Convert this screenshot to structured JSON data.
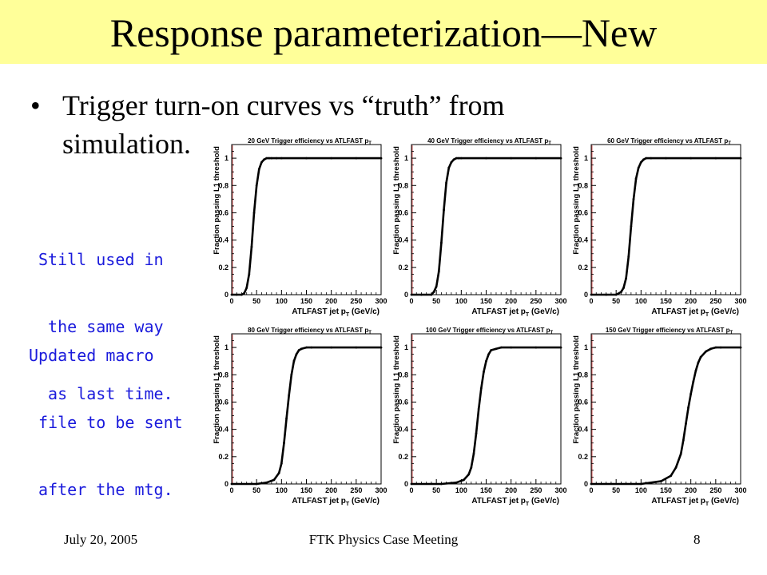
{
  "slide": {
    "title": "Response parameterization—New",
    "bullet_symbol": "•",
    "bullet_lines": [
      "Trigger turn-on curves vs “truth” from",
      "simulation."
    ],
    "note1_lines": [
      "Still used in",
      " the same way",
      " as last time."
    ],
    "note2_lines": [
      "Updated macro",
      " file to be sent",
      " after the mtg."
    ],
    "footer_date": "July 20, 2005",
    "footer_center": "FTK Physics Case Meeting",
    "footer_page": "8"
  },
  "colors": {
    "title_bg": "#ffff99",
    "note_text": "#1a1adc",
    "curve": "#000000",
    "frame": "#000000"
  },
  "chart_data": [
    {
      "type": "line",
      "title": "20 GeV Trigger efficiency vs ATLFAST p",
      "title_sub": "T",
      "xlabel": "ATLFAST jet p",
      "xlabel_sub": "T",
      "xlabel_unit": " (GeV/c)",
      "ylabel": "Fraction passing L1 threshold",
      "xlim": [
        0,
        300
      ],
      "ylim": [
        0,
        1.1
      ],
      "xticks": [
        0,
        50,
        100,
        150,
        200,
        250,
        300
      ],
      "yticks": [
        0,
        0.2,
        0.4,
        0.6,
        0.8,
        1
      ],
      "x": [
        0,
        10,
        20,
        25,
        30,
        35,
        40,
        45,
        50,
        55,
        60,
        65,
        70,
        75,
        80,
        90,
        100,
        150,
        200,
        250,
        300
      ],
      "y": [
        0,
        0,
        0,
        0.01,
        0.05,
        0.15,
        0.35,
        0.6,
        0.8,
        0.92,
        0.97,
        0.99,
        1,
        1,
        1,
        1,
        1,
        1,
        1,
        1,
        1
      ]
    },
    {
      "type": "line",
      "title": "40 GeV Trigger efficiency vs ATLFAST p",
      "title_sub": "T",
      "xlabel": "ATLFAST jet p",
      "xlabel_sub": "T",
      "xlabel_unit": " (GeV/c)",
      "ylabel": "Fraction passing L1 threshold",
      "xlim": [
        0,
        300
      ],
      "ylim": [
        0,
        1.1
      ],
      "xticks": [
        0,
        50,
        100,
        150,
        200,
        250,
        300
      ],
      "yticks": [
        0,
        0.2,
        0.4,
        0.6,
        0.8,
        1
      ],
      "x": [
        0,
        20,
        40,
        45,
        50,
        55,
        60,
        65,
        70,
        75,
        80,
        85,
        90,
        95,
        100,
        150,
        200,
        250,
        300
      ],
      "y": [
        0,
        0,
        0,
        0.02,
        0.06,
        0.17,
        0.38,
        0.62,
        0.82,
        0.93,
        0.97,
        0.99,
        1,
        1,
        1,
        1,
        1,
        1,
        1
      ]
    },
    {
      "type": "line",
      "title": "60 GeV Trigger efficiency vs ATLFAST p",
      "title_sub": "T",
      "xlabel": "ATLFAST jet p",
      "xlabel_sub": "T",
      "xlabel_unit": " (GeV/c)",
      "ylabel": "Fraction passing L1 threshold",
      "xlim": [
        0,
        300
      ],
      "ylim": [
        0,
        1.1
      ],
      "xticks": [
        0,
        50,
        100,
        150,
        200,
        250,
        300
      ],
      "yticks": [
        0,
        0.2,
        0.4,
        0.6,
        0.8,
        1
      ],
      "x": [
        0,
        30,
        50,
        60,
        65,
        70,
        75,
        80,
        85,
        90,
        95,
        100,
        105,
        110,
        120,
        150,
        200,
        250,
        300
      ],
      "y": [
        0,
        0,
        0,
        0.02,
        0.05,
        0.12,
        0.28,
        0.5,
        0.7,
        0.85,
        0.93,
        0.97,
        0.99,
        1,
        1,
        1,
        1,
        1,
        1
      ]
    },
    {
      "type": "line",
      "title": "80 GeV Trigger efficiency vs ATLFAST p",
      "title_sub": "T",
      "xlabel": "ATLFAST jet p",
      "xlabel_sub": "T",
      "xlabel_unit": " (GeV/c)",
      "ylabel": "Fraction passing L1 threshold",
      "xlim": [
        0,
        300
      ],
      "ylim": [
        0,
        1.1
      ],
      "xticks": [
        0,
        50,
        100,
        150,
        200,
        250,
        300
      ],
      "yticks": [
        0,
        0.2,
        0.4,
        0.6,
        0.8,
        1
      ],
      "x": [
        0,
        50,
        70,
        85,
        95,
        100,
        105,
        110,
        115,
        120,
        125,
        130,
        135,
        140,
        150,
        160,
        200,
        250,
        300
      ],
      "y": [
        0,
        0,
        0.01,
        0.03,
        0.08,
        0.15,
        0.3,
        0.48,
        0.65,
        0.8,
        0.9,
        0.95,
        0.98,
        0.99,
        1,
        1,
        1,
        1,
        1
      ]
    },
    {
      "type": "line",
      "title": "100 GeV Trigger efficiency vs ATLFAST p",
      "title_sub": "T",
      "xlabel": "ATLFAST jet p",
      "xlabel_sub": "T",
      "xlabel_unit": " (GeV/c)",
      "ylabel": "Fraction passing L1 threshold",
      "xlim": [
        0,
        300
      ],
      "ylim": [
        0,
        1.1
      ],
      "xticks": [
        0,
        50,
        100,
        150,
        200,
        250,
        300
      ],
      "yticks": [
        0,
        0.2,
        0.4,
        0.6,
        0.8,
        1
      ],
      "x": [
        0,
        60,
        90,
        105,
        115,
        120,
        125,
        130,
        135,
        140,
        145,
        150,
        155,
        160,
        170,
        180,
        200,
        250,
        300
      ],
      "y": [
        0,
        0,
        0.01,
        0.03,
        0.07,
        0.12,
        0.22,
        0.37,
        0.55,
        0.7,
        0.82,
        0.9,
        0.95,
        0.98,
        0.99,
        1,
        1,
        1,
        1
      ]
    },
    {
      "type": "line",
      "title": "150 GeV Trigger efficiency vs ATLFAST p",
      "title_sub": "T",
      "xlabel": "ATLFAST jet p",
      "xlabel_sub": "T",
      "xlabel_unit": " (GeV/c)",
      "ylabel": "Fraction passing L1 threshold",
      "xlim": [
        0,
        300
      ],
      "ylim": [
        0,
        1.1
      ],
      "xticks": [
        0,
        50,
        100,
        150,
        200,
        250,
        300
      ],
      "yticks": [
        0,
        0.2,
        0.4,
        0.6,
        0.8,
        1
      ],
      "x": [
        0,
        100,
        140,
        160,
        170,
        180,
        185,
        190,
        195,
        200,
        205,
        210,
        215,
        220,
        230,
        240,
        250,
        260,
        300
      ],
      "y": [
        0,
        0,
        0.02,
        0.06,
        0.12,
        0.22,
        0.32,
        0.44,
        0.56,
        0.66,
        0.75,
        0.83,
        0.89,
        0.93,
        0.97,
        0.99,
        1,
        1,
        1
      ]
    }
  ]
}
